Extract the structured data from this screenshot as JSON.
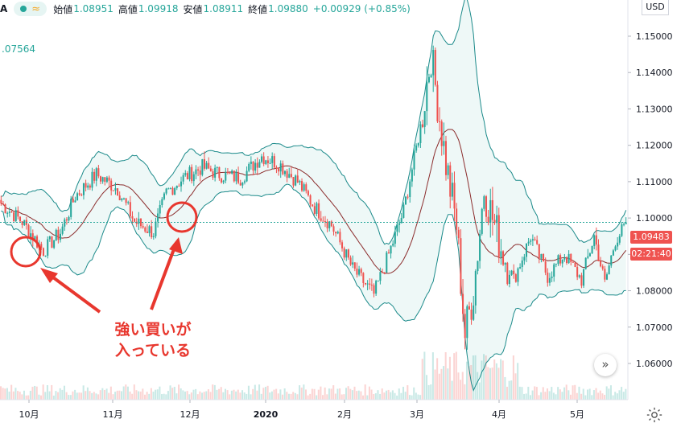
{
  "ohlc": {
    "ticker": "A",
    "open_label": "始値",
    "open": "1.08951",
    "high_label": "高値",
    "high": "1.09918",
    "low_label": "安値",
    "low": "1.08911",
    "close_label": "終値",
    "close": "1.09880",
    "change": "+0.00929 (+0.85%)"
  },
  "indicator_value": ".07564",
  "currency": "USD",
  "price_tag": "1.09483",
  "countdown": "02:21:40",
  "annotation": {
    "line1": "強い買いが",
    "line2": "入っている"
  },
  "scroll_button": "»",
  "colors": {
    "up": "#26a69a",
    "down": "#ef5350",
    "band": "#1b8a8a",
    "basis": "#8b2c2c",
    "annotation": "#e8372e"
  },
  "chart_data": {
    "type": "candlestick",
    "y_ticks": [
      1.06,
      1.07,
      1.08,
      1.09,
      1.1,
      1.11,
      1.12,
      1.13,
      1.14,
      1.15
    ],
    "y_tick_labels": [
      "1.06000",
      "1.07000",
      "1.08000",
      "1.09000",
      "1.10000",
      "1.11000",
      "1.12000",
      "1.13000",
      "1.14000",
      "1.15000"
    ],
    "x_labels": [
      "10月",
      "11月",
      "12月",
      "2020",
      "2月",
      "3月",
      "4月",
      "5月"
    ],
    "current_price": 1.0988,
    "indicator": "Bollinger Bands",
    "path_anchors": [
      [
        0,
        1.104
      ],
      [
        10,
        1.099
      ],
      [
        20,
        1.091
      ],
      [
        28,
        1.096
      ],
      [
        35,
        1.106
      ],
      [
        45,
        1.112
      ],
      [
        55,
        1.108
      ],
      [
        63,
        1.099
      ],
      [
        72,
        1.096
      ],
      [
        78,
        1.107
      ],
      [
        86,
        1.111
      ],
      [
        95,
        1.114
      ],
      [
        103,
        1.112
      ],
      [
        113,
        1.111
      ],
      [
        123,
        1.117
      ],
      [
        131,
        1.115
      ],
      [
        140,
        1.11
      ],
      [
        148,
        1.103
      ],
      [
        156,
        1.098
      ],
      [
        166,
        1.086
      ],
      [
        176,
        1.079
      ],
      [
        183,
        1.09
      ],
      [
        190,
        1.102
      ],
      [
        198,
        1.125
      ],
      [
        203,
        1.145
      ],
      [
        210,
        1.115
      ],
      [
        215,
        1.098
      ],
      [
        219,
        1.068
      ],
      [
        223,
        1.08
      ],
      [
        228,
        1.108
      ],
      [
        236,
        1.092
      ],
      [
        242,
        1.083
      ],
      [
        250,
        1.095
      ],
      [
        258,
        1.084
      ],
      [
        266,
        1.09
      ],
      [
        274,
        1.083
      ],
      [
        280,
        1.095
      ],
      [
        285,
        1.082
      ],
      [
        290,
        1.094
      ],
      [
        295,
        1.098
      ]
    ],
    "bands_note": "20-period SMA basis with 2σ upper/lower bands"
  }
}
